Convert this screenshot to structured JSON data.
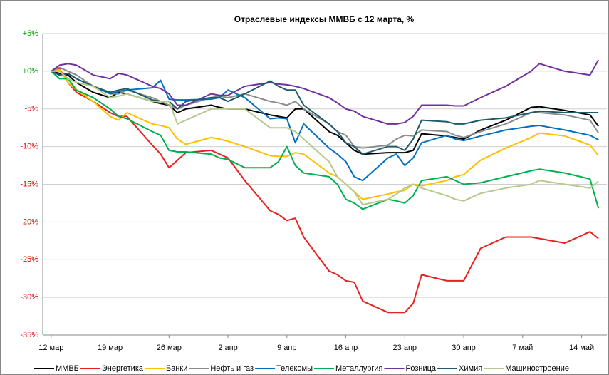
{
  "chart_data": {
    "type": "line",
    "title": "Отраслевые индексы ММВБ с 12 марта, %",
    "x": [
      0,
      1,
      2,
      3,
      5,
      7,
      8,
      9,
      12,
      13,
      14,
      15,
      16,
      19,
      20,
      21,
      23,
      26,
      27,
      28,
      29,
      30,
      33,
      34,
      35,
      36,
      37,
      40,
      41,
      42,
      43,
      44,
      47,
      48,
      49,
      51,
      54,
      57,
      58,
      61,
      64,
      65
    ],
    "xlim": [
      -1,
      66
    ],
    "xticks": [
      {
        "value": 0,
        "label": "12 мар"
      },
      {
        "value": 7,
        "label": "19 мар"
      },
      {
        "value": 14,
        "label": "26 мар"
      },
      {
        "value": 21,
        "label": "2 апр"
      },
      {
        "value": 28,
        "label": "9 апр"
      },
      {
        "value": 35,
        "label": "16 апр"
      },
      {
        "value": 42,
        "label": "23 апр"
      },
      {
        "value": 49,
        "label": "30 апр"
      },
      {
        "value": 56,
        "label": "7 май"
      },
      {
        "value": 63,
        "label": "14 май"
      }
    ],
    "ylim": [
      -35,
      5
    ],
    "yticks": [
      {
        "value": 5,
        "label": "+5%"
      },
      {
        "value": 0,
        "label": "+0%"
      },
      {
        "value": -5,
        "label": "-5%"
      },
      {
        "value": -10,
        "label": "-10%"
      },
      {
        "value": -15,
        "label": "-15%"
      },
      {
        "value": -20,
        "label": "-20%"
      },
      {
        "value": -25,
        "label": "-25%"
      },
      {
        "value": -30,
        "label": "-30%"
      },
      {
        "value": -35,
        "label": "-35%"
      }
    ],
    "grid": true,
    "legend": "bottom",
    "series": [
      {
        "name": "ММВБ",
        "color": "#000000",
        "values": [
          0,
          -0.3,
          -0.5,
          -1.5,
          -2.8,
          -3.5,
          -2.8,
          -3,
          -4,
          -4.3,
          -4.5,
          -5.5,
          -5,
          -4.5,
          -4.8,
          -5,
          -5,
          -5.8,
          -6,
          -6.2,
          -5,
          -5,
          -8,
          -8.5,
          -9.5,
          -10.5,
          -11,
          -10.8,
          -10.8,
          -10.8,
          -10.5,
          -8.3,
          -8.6,
          -8.8,
          -9,
          -7.8,
          -6.5,
          -4.8,
          -4.7,
          -5.2,
          -5.8,
          -7.3
        ]
      },
      {
        "name": "Энергетика",
        "color": "#e8201e",
        "values": [
          0,
          0.3,
          -1.5,
          -2.8,
          -4,
          -5.5,
          -6,
          -6,
          -9.8,
          -11,
          -12.8,
          -11.8,
          -10.8,
          -10.5,
          -11,
          -11.5,
          -14.5,
          -18.5,
          -19,
          -19.8,
          -19.5,
          -22,
          -26.5,
          -27,
          -27.8,
          -28,
          -30.5,
          -32,
          -32,
          -32,
          -30.8,
          -27,
          -27.8,
          -27.8,
          -27.8,
          -23.5,
          -22,
          -22,
          -22.2,
          -22.8,
          -21.3,
          -22.2
        ]
      },
      {
        "name": "Банки",
        "color": "#ffc000",
        "values": [
          0,
          0.2,
          -1.5,
          -2.5,
          -4,
          -6,
          -6.5,
          -5.5,
          -7,
          -7.2,
          -7.5,
          -9,
          -9.7,
          -8.8,
          -9,
          -9.3,
          -10,
          -11.2,
          -11.3,
          -11.3,
          -10.8,
          -11,
          -13.5,
          -14,
          -15,
          -16,
          -17,
          -16.3,
          -16,
          -15.8,
          -15,
          -15.2,
          -14.5,
          -14,
          -13.7,
          -11.8,
          -10.2,
          -8.8,
          -8.2,
          -8.6,
          -9.8,
          -11.2
        ]
      },
      {
        "name": "Нефть и газ",
        "color": "#8c8c8c",
        "values": [
          0,
          0.5,
          0,
          -0.5,
          -2,
          -3,
          -3,
          -2.5,
          -3.5,
          -4,
          -4.5,
          -5,
          -4.5,
          -3.5,
          -3.3,
          -3.5,
          -3,
          -4,
          -4.2,
          -4.5,
          -4,
          -5,
          -7,
          -8,
          -8.5,
          -10,
          -10.2,
          -9.8,
          -9,
          -8.5,
          -8.6,
          -7.8,
          -8,
          -8.5,
          -8.8,
          -8,
          -7,
          -5.5,
          -5.5,
          -5.8,
          -6.5,
          -8.2
        ]
      },
      {
        "name": "Телекомы",
        "color": "#0070c0",
        "values": [
          0,
          -0.5,
          -0.3,
          -1,
          -2,
          -3,
          -2.7,
          -2.5,
          -2.2,
          -1.2,
          -3.7,
          -3.8,
          -3.8,
          -3.7,
          -3.5,
          -2.5,
          -3.5,
          -6.3,
          -6.2,
          -6.3,
          -9.5,
          -7,
          -10.2,
          -11,
          -12,
          -14,
          -14.5,
          -11.5,
          -11,
          -12.5,
          -11.5,
          -9.5,
          -8.5,
          -9,
          -9.2,
          -8.6,
          -7.8,
          -7.3,
          -7.2,
          -7.8,
          -8.5,
          -9.1
        ]
      },
      {
        "name": "Металлургия",
        "color": "#00b050",
        "values": [
          0,
          -1,
          -1,
          -2.5,
          -3.5,
          -5,
          -6,
          -6.3,
          -8,
          -8.5,
          -10.5,
          -10.7,
          -10.7,
          -11,
          -11.5,
          -11.7,
          -12.8,
          -12.8,
          -12,
          -10,
          -12.5,
          -13.5,
          -14,
          -15,
          -17,
          -17.5,
          -18.3,
          -17,
          -17.2,
          -17.5,
          -16.5,
          -14.5,
          -14,
          -14.5,
          -15,
          -14.8,
          -14,
          -13.2,
          -13,
          -13.5,
          -14.3,
          -18.2
        ]
      },
      {
        "name": "Розница",
        "color": "#7030a0",
        "values": [
          0,
          0.8,
          1,
          0.8,
          -0.5,
          -1,
          -0.3,
          -0.5,
          -2,
          -2.3,
          -3,
          -4.5,
          -4.5,
          -3,
          -3.2,
          -3.2,
          -2,
          -1.5,
          -1.7,
          -1.8,
          -2,
          -2.3,
          -3.5,
          -4.2,
          -5,
          -5.3,
          -6,
          -7,
          -7,
          -6.8,
          -6,
          -4.5,
          -4.5,
          -4.6,
          -4.6,
          -3.5,
          -2,
          0,
          1,
          0,
          -0.5,
          1.5
        ]
      },
      {
        "name": "Химия",
        "color": "#1f5c6b",
        "values": [
          0,
          -0.5,
          -0.3,
          -1,
          -2,
          -2.8,
          -2.5,
          -2.3,
          -3.8,
          -4,
          -4,
          -5,
          -4,
          -3.5,
          -3.5,
          -4,
          -3,
          -1.3,
          -2,
          -2.5,
          -2.5,
          -4.5,
          -7,
          -8,
          -9.5,
          -10,
          -11,
          -10,
          -10,
          -10.5,
          -9,
          -6.5,
          -6.7,
          -7,
          -7,
          -6.5,
          -6.2,
          -5.5,
          -5.3,
          -5.5,
          -5.5,
          -5.5
        ]
      },
      {
        "name": "Машиностроение",
        "color": "#b4c98c",
        "values": [
          0,
          0,
          -1,
          -1.5,
          -2,
          -3.5,
          -3.3,
          -3,
          -4,
          -4,
          -4,
          -7,
          -6.5,
          -5,
          -5,
          -5,
          -5,
          -7.5,
          -7.5,
          -7.5,
          -8,
          -9,
          -12,
          -14,
          -15,
          -16,
          -17.7,
          -17,
          -16.3,
          -15.5,
          -15,
          -15.5,
          -16.5,
          -17,
          -17.2,
          -16.2,
          -15.5,
          -15,
          -14.5,
          -15,
          -15.5,
          -14.6
        ]
      }
    ]
  }
}
